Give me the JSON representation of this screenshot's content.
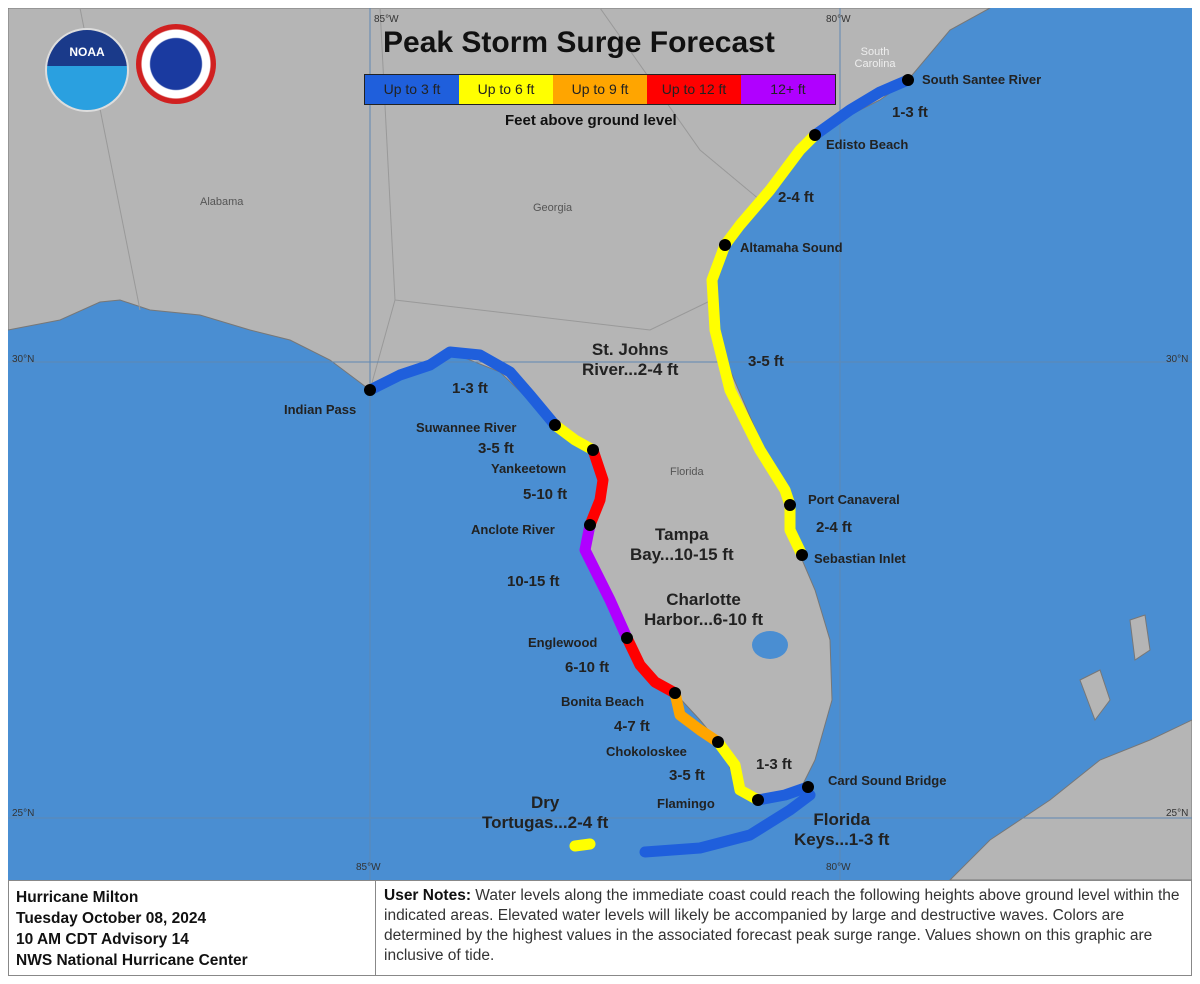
{
  "title": "Peak Storm Surge Forecast",
  "legend": {
    "items": [
      {
        "label": "Up to 3 ft",
        "color": "#1f5fdc"
      },
      {
        "label": "Up to 6 ft",
        "color": "#ffff00"
      },
      {
        "label": "Up to 9 ft",
        "color": "#ffa500"
      },
      {
        "label": "Up to 12 ft",
        "color": "#ff0000"
      },
      {
        "label": "12+ ft",
        "color": "#b000ff"
      }
    ],
    "subtitle": "Feet above ground level"
  },
  "logos": {
    "noaa": "NOAA",
    "nws": "NATIONAL WEATHER SERVICE"
  },
  "colors": {
    "land": "#b5b5b5",
    "water": "#4a8ed2",
    "gridline": "#6a8fb0"
  },
  "grid_labels": {
    "lon85_top": "85°W",
    "lon80_top": "80°W",
    "lon85_bottom": "85°W",
    "lon80_bottom": "80°W",
    "lat30_left": "30°N",
    "lat30_right": "30°N",
    "lat25_left": "25°N",
    "lat25_right": "25°N"
  },
  "states": [
    "Alabama",
    "Georgia",
    "South Carolina",
    "Florida"
  ],
  "locations": [
    "South Santee River",
    "Edisto Beach",
    "Altamaha Sound",
    "Port Canaveral",
    "Sebastian Inlet",
    "Indian Pass",
    "Suwannee River",
    "Yankeetown",
    "Anclote River",
    "Englewood",
    "Bonita Beach",
    "Chokoloskee",
    "Flamingo",
    "Card Sound Bridge"
  ],
  "values": [
    "1-3 ft",
    "2-4 ft",
    "3-5 ft",
    "2-4 ft",
    "1-3 ft",
    "3-5 ft",
    "5-10 ft",
    "10-15 ft",
    "6-10 ft",
    "4-7 ft",
    "3-5 ft",
    "1-3 ft"
  ],
  "areas": [
    {
      "line1": "St. Johns",
      "line2": "River...2-4 ft"
    },
    {
      "line1": "Tampa",
      "line2": "Bay...10-15 ft"
    },
    {
      "line1": "Charlotte",
      "line2": "Harbor...6-10 ft"
    },
    {
      "line1": "Dry",
      "line2": "Tortugas...2-4 ft"
    },
    {
      "line1": "Florida",
      "line2": "Keys...1-3 ft"
    }
  ],
  "footer": {
    "storm": "Hurricane Milton",
    "date": "Tuesday October 08, 2024",
    "advisory": "10 AM CDT Advisory 14",
    "center": "NWS National Hurricane Center",
    "notes_label": "User Notes:",
    "notes": " Water levels along the immediate coast could reach the following heights above ground level within the indicated areas. Elevated water levels will likely be accompanied by large and destructive waves. Colors are determined by the highest values in the associated forecast peak surge range. Values shown on this graphic are inclusive of tide."
  }
}
